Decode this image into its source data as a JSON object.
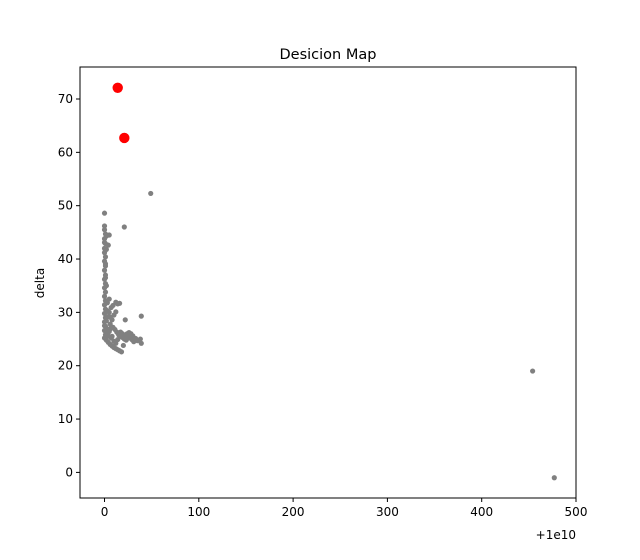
{
  "chart_data": {
    "type": "scatter",
    "title": "Desicion Map",
    "xlabel": "",
    "ylabel": "delta",
    "x_offset_label": "+1e10",
    "xlim": [
      -26,
      500
    ],
    "ylim": [
      -4.8,
      76
    ],
    "xticks": [
      0,
      100,
      200,
      300,
      400,
      500
    ],
    "yticks": [
      0,
      10,
      20,
      30,
      40,
      50,
      60,
      70
    ],
    "grid": false,
    "series": [
      {
        "color": "#808080",
        "marker_size": "small",
        "points": [
          [
            0,
            48.6
          ],
          [
            0,
            46.2
          ],
          [
            0,
            45.5
          ],
          [
            1,
            44.7
          ],
          [
            2,
            44.3
          ],
          [
            5,
            44.5
          ],
          [
            0,
            43.8
          ],
          [
            1,
            42.9
          ],
          [
            4,
            42.6
          ],
          [
            0,
            42.0
          ],
          [
            0,
            41.2
          ],
          [
            1,
            40.4
          ],
          [
            0,
            39.6
          ],
          [
            1,
            38.7
          ],
          [
            0,
            37.9
          ],
          [
            1,
            37.0
          ],
          [
            0,
            36.2
          ],
          [
            1,
            35.4
          ],
          [
            0,
            34.6
          ],
          [
            1,
            33.8
          ],
          [
            0,
            33.0
          ],
          [
            1,
            32.2
          ],
          [
            0,
            31.4
          ],
          [
            1,
            30.6
          ],
          [
            0,
            29.8
          ],
          [
            1,
            29.0
          ],
          [
            0,
            28.2
          ],
          [
            1,
            27.4
          ],
          [
            0,
            26.6
          ],
          [
            1,
            25.8
          ],
          [
            0,
            25.2
          ],
          [
            2,
            24.8
          ],
          [
            4,
            24.4
          ],
          [
            6,
            24.0
          ],
          [
            8,
            23.7
          ],
          [
            10,
            23.4
          ],
          [
            12,
            23.2
          ],
          [
            14,
            23.0
          ],
          [
            16,
            22.8
          ],
          [
            18,
            22.6
          ],
          [
            3,
            31.8
          ],
          [
            5,
            32.5
          ],
          [
            7,
            30.9
          ],
          [
            9,
            31.3
          ],
          [
            12,
            31.9
          ],
          [
            14,
            31.6
          ],
          [
            16,
            31.7
          ],
          [
            10,
            29.5
          ],
          [
            12,
            30.1
          ],
          [
            8,
            28.6
          ],
          [
            6,
            27.8
          ],
          [
            9,
            27.2
          ],
          [
            11,
            26.8
          ],
          [
            13,
            26.3
          ],
          [
            15,
            25.8
          ],
          [
            17,
            25.5
          ],
          [
            19,
            25.3
          ],
          [
            21,
            25.0
          ],
          [
            23,
            24.8
          ],
          [
            25,
            25.2
          ],
          [
            27,
            25.4
          ],
          [
            29,
            24.9
          ],
          [
            31,
            24.5
          ],
          [
            33,
            25.1
          ],
          [
            35,
            24.7
          ],
          [
            24,
            26.0
          ],
          [
            26,
            26.2
          ],
          [
            28,
            26.0
          ],
          [
            30,
            25.6
          ],
          [
            22,
            28.6
          ],
          [
            20,
            23.8
          ],
          [
            38,
            25.0
          ],
          [
            39,
            24.2
          ],
          [
            39,
            29.3
          ],
          [
            21,
            46.0
          ],
          [
            49,
            52.3
          ],
          [
            3,
            26.0
          ],
          [
            5,
            26.4
          ],
          [
            7,
            25.2
          ],
          [
            4,
            25.6
          ],
          [
            2,
            27.0
          ],
          [
            6,
            26.9
          ],
          [
            8,
            25.5
          ],
          [
            10,
            24.6
          ],
          [
            12,
            24.2
          ],
          [
            14,
            24.9
          ],
          [
            17,
            26.3
          ],
          [
            19,
            26.0
          ],
          [
            22,
            25.7
          ],
          [
            0,
            27.5
          ],
          [
            2,
            28.4
          ],
          [
            4,
            29.2
          ],
          [
            3,
            30.3
          ],
          [
            5,
            30.0
          ],
          [
            6,
            29.1
          ],
          [
            1,
            36.5
          ],
          [
            1,
            39.1
          ],
          [
            2,
            41.8
          ],
          [
            0,
            43.1
          ],
          [
            2,
            35.0
          ],
          [
            454,
            19.0
          ],
          [
            477,
            -1.0
          ]
        ]
      },
      {
        "color": "#ff0000",
        "marker_size": "large",
        "points": [
          [
            14,
            72.1
          ],
          [
            21,
            62.7
          ]
        ]
      }
    ]
  }
}
